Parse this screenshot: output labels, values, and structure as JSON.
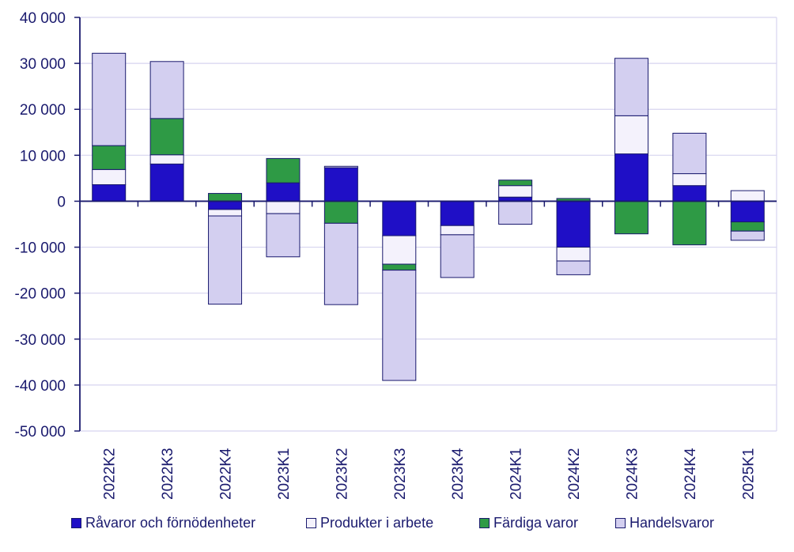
{
  "chart_data": {
    "type": "bar",
    "stacked": true,
    "categories": [
      "2022K2",
      "2022K3",
      "2022K4",
      "2023K1",
      "2023K2",
      "2023K3",
      "2023K4",
      "2024K1",
      "2024K2",
      "2024K3",
      "2024K4",
      "2025K1"
    ],
    "series": [
      {
        "name": "Råvaror och förnödenheter",
        "color": "#1f0fc6",
        "values": [
          3600,
          8100,
          -1800,
          4000,
          7300,
          -7500,
          -5300,
          900,
          -10000,
          10300,
          3400,
          -4500
        ]
      },
      {
        "name": "Produkter i arbete",
        "color": "#f4f2fc",
        "values": [
          3300,
          2000,
          -1400,
          -2700,
          300,
          -6200,
          -2000,
          2500,
          -3000,
          8300,
          2600,
          2300
        ]
      },
      {
        "name": "Färdiga varor",
        "color": "#2e9a45",
        "values": [
          5200,
          7900,
          1700,
          5300,
          -4800,
          -1300,
          0,
          1200,
          600,
          -7100,
          -9500,
          -2000
        ]
      },
      {
        "name": "Handelsvaror",
        "color": "#d3cff0",
        "values": [
          20100,
          12400,
          -19200,
          -9400,
          -17700,
          -24000,
          -9300,
          -5000,
          -3000,
          12500,
          8800,
          -2000
        ]
      }
    ],
    "ylim": [
      -50000,
      40000
    ],
    "yticks": [
      -50000,
      -40000,
      -30000,
      -20000,
      -10000,
      0,
      10000,
      20000,
      30000,
      40000
    ],
    "ytick_labels": [
      "-50 000",
      "-40 000",
      "-30 000",
      "-20 000",
      "-10 000",
      "0",
      "10 000",
      "20 000",
      "30 000",
      "40 000"
    ],
    "grid": true,
    "legend_position": "bottom",
    "title": "",
    "xlabel": "",
    "ylabel": ""
  }
}
